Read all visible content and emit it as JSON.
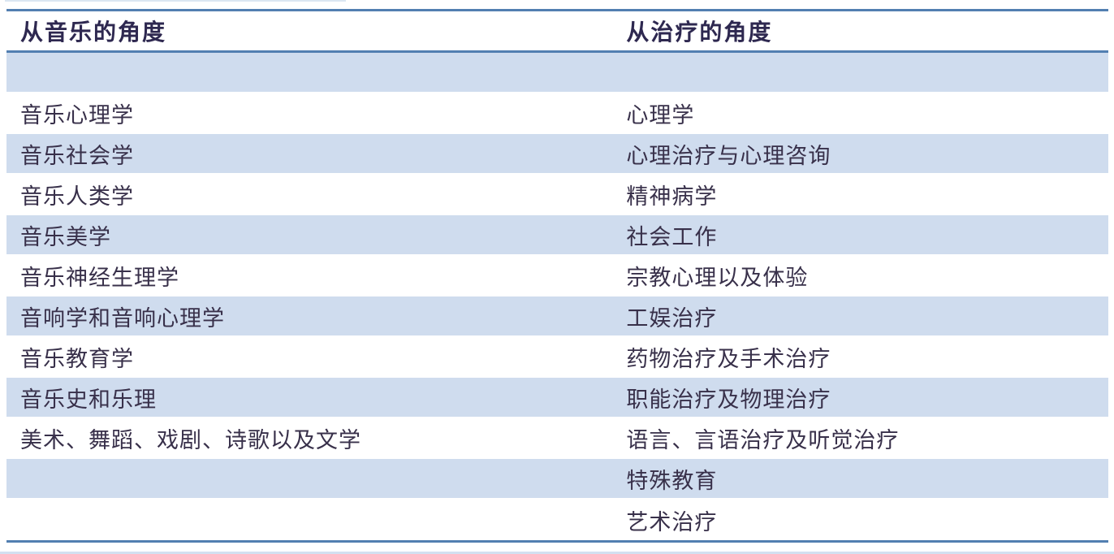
{
  "colors": {
    "rule_blue": "#527fb1",
    "stripe_blue": "#cfdcee",
    "header_text": "#2e2850",
    "body_text": "#38304a",
    "background": "#ffffff"
  },
  "table": {
    "columns": [
      {
        "label": "从音乐的角度"
      },
      {
        "label": "从治疗的角度"
      }
    ],
    "rows": [
      {
        "left": "",
        "right": "",
        "striped": true
      },
      {
        "left": "音乐心理学",
        "right": "心理学",
        "striped": false
      },
      {
        "left": "音乐社会学",
        "right": "心理治疗与心理咨询",
        "striped": true
      },
      {
        "left": "音乐人类学",
        "right": "精神病学",
        "striped": false
      },
      {
        "left": "音乐美学",
        "right": "社会工作",
        "striped": true
      },
      {
        "left": "音乐神经生理学",
        "right": "宗教心理以及体验",
        "striped": false
      },
      {
        "left": "音响学和音响心理学",
        "right": "工娱治疗",
        "striped": true
      },
      {
        "left": "音乐教育学",
        "right": "药物治疗及手术治疗",
        "striped": false
      },
      {
        "left": "音乐史和乐理",
        "right": "职能治疗及物理治疗",
        "striped": true
      },
      {
        "left": "美术、舞蹈、戏剧、诗歌以及文学",
        "right": "语言、言语治疗及听觉治疗",
        "striped": false
      },
      {
        "left": "",
        "right": "特殊教育",
        "striped": true
      },
      {
        "left": "",
        "right": "艺术治疗",
        "striped": false
      }
    ]
  }
}
